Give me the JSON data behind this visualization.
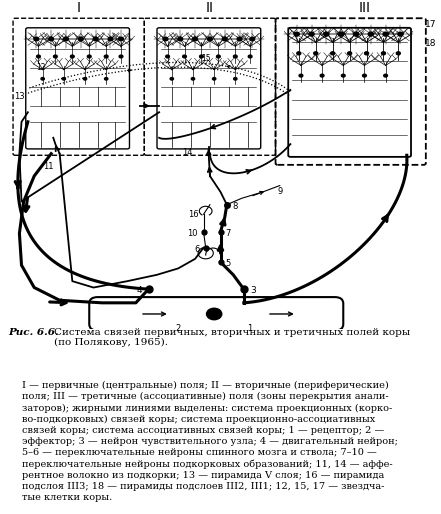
{
  "title_fig": "Рис. 6.6.",
  "title_text": " Система связей первичных, вторичных и третичных полей коры\n(по Полякову, 1965).",
  "caption": "I — первичные (центральные) поля; II — вторичные (периферические)\nполя; III — третичные (ассоциативные) поля (зоны перекрытия анали-\nзаторов); жирными линиями выделены: система проекционных (корко-\nво-подкорковых) связей коры; система проекционно-ассоциативных\nсвязей коры; система ассоциативных связей коры; 1 — рецептор; 2 —\nэффектор; 3 — нейрон чувствительного узла; 4 — двигательный нейрон;\n5–6 — переключательные нейроны спинного мозга и ствола; 7–10 —\nпереключательные нейроны подкорковых образований; 11, 14 — аффе-\nрентное волокно из подкорки; 13 — пирамида V слоя; 16 — пирамида\nподслоя ΙΙΙ3; 18 — пирамиды подслоев ΙΙΙ2, ΙΙΙ1; 12, 15, 17 — звездча-\nтые клетки коры.",
  "bg_color": "#ffffff",
  "label_I": "I",
  "label_II": "II",
  "label_III": "III"
}
